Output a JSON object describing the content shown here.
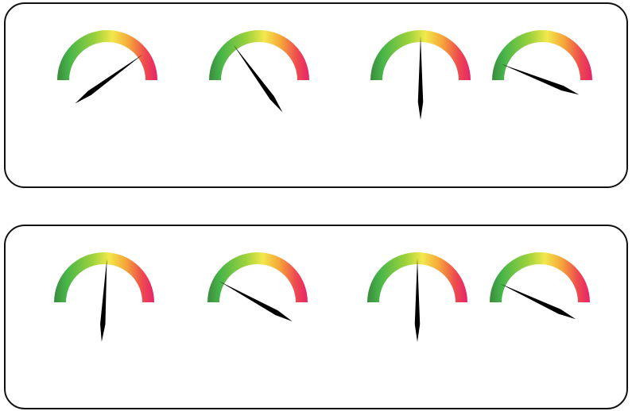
{
  "colors": {
    "panel_border": "#111111",
    "needle": "#000000",
    "gauge_gradient": [
      "#3b8a3e",
      "#47b549",
      "#9cd23c",
      "#f2e84a",
      "#f6a43a",
      "#ee4a4f",
      "#e6246a"
    ]
  },
  "panels": [
    {
      "name": "top",
      "gauges": [
        {
          "reading": 0.8,
          "needle_color": "#000000"
        },
        {
          "reading": 0.3,
          "needle_color": "#000000"
        },
        {
          "reading": 0.5,
          "needle_color": "#000000"
        },
        {
          "reading": 0.12,
          "needle_color": "#000000"
        }
      ]
    },
    {
      "name": "bottom",
      "gauges": [
        {
          "reading": 0.52,
          "needle_color": "#000000"
        },
        {
          "reading": 0.16,
          "needle_color": "#000000"
        },
        {
          "reading": 0.5,
          "needle_color": "#000000"
        },
        {
          "reading": 0.14,
          "needle_color": "#000000"
        }
      ]
    }
  ]
}
